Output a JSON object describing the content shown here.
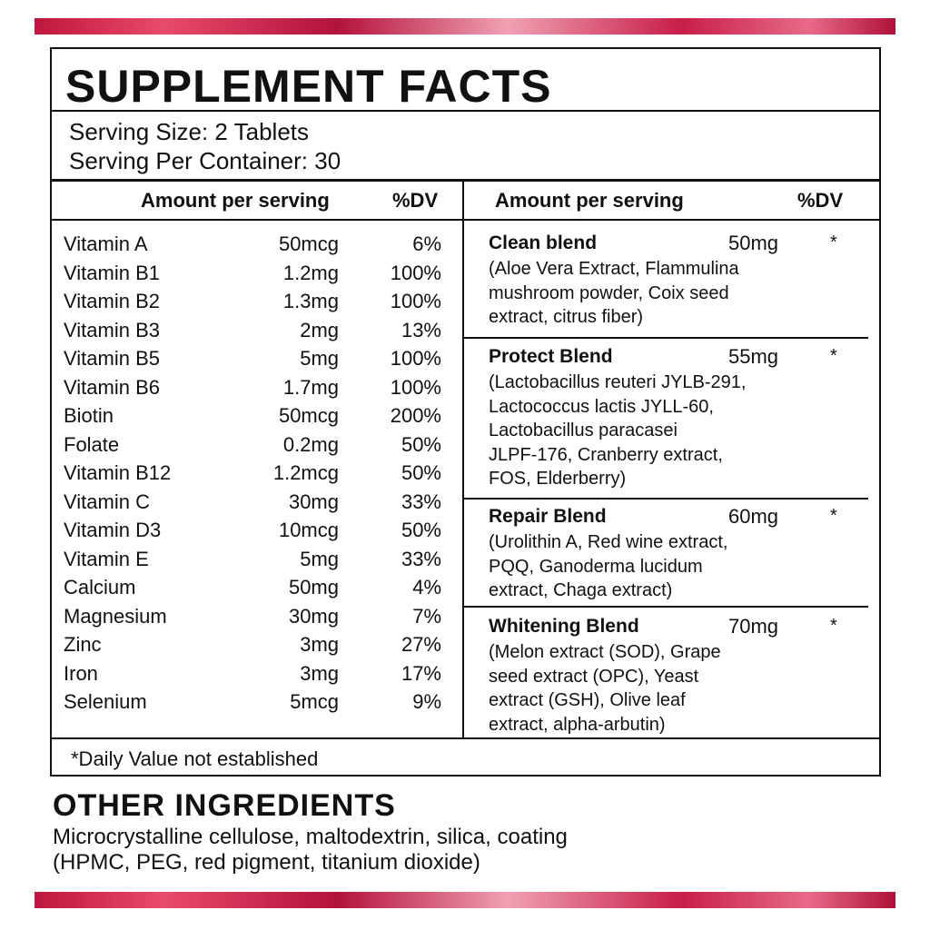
{
  "title": "SUPPLEMENT FACTS",
  "serving_size": "Serving Size: 2 Tablets",
  "servings_per_container": "Serving Per Container: 30",
  "left_header": {
    "amount": "Amount  per serving",
    "dv": "%DV"
  },
  "right_header": {
    "amount": "Amount  per serving",
    "dv": "%DV"
  },
  "vitamins": [
    [
      "Vitamin A",
      "50mcg",
      "6%"
    ],
    [
      "Vitamin B1",
      "1.2mg",
      "100%"
    ],
    [
      "Vitamin B2",
      "1.3mg",
      "100%"
    ],
    [
      "Vitamin B3",
      "2mg",
      "13%"
    ],
    [
      "Vitamin B5",
      "5mg",
      "100%"
    ],
    [
      "Vitamin B6",
      "1.7mg",
      "100%"
    ],
    [
      "Biotin",
      "50mcg",
      "200%"
    ],
    [
      "Folate",
      "0.2mg",
      "50%"
    ],
    [
      "Vitamin B12",
      "1.2mcg",
      "50%"
    ],
    [
      "Vitamin C",
      "30mg",
      "33%"
    ],
    [
      "Vitamin D3",
      "10mcg",
      "50%"
    ],
    [
      "Vitamin E",
      "5mg",
      "33%"
    ],
    [
      "Calcium",
      "50mg",
      "4%"
    ],
    [
      "Magnesium",
      "30mg",
      "7%"
    ],
    [
      "Zinc",
      "3mg",
      "27%"
    ],
    [
      "Iron",
      "3mg",
      "17%"
    ],
    [
      "Selenium",
      "5mcg",
      "9%"
    ]
  ],
  "blends": [
    {
      "name": "Clean blend",
      "amount": "50mg",
      "dv": "*",
      "lines": [
        "(Aloe Vera Extract, Flammulina",
        "mushroom powder, Coix seed",
        "extract, citrus fiber)"
      ]
    },
    {
      "name": "Protect Blend",
      "amount": "55mg",
      "dv": "*",
      "lines": [
        "(Lactobacillus reuteri JYLB-291,",
        "Lactococcus lactis JYLL-60,",
        "Lactobacillus paracasei",
        "JLPF-176, Cranberry extract,",
        "FOS, Elderberry)"
      ]
    },
    {
      "name": "Repair Blend",
      "amount": "60mg",
      "dv": "*",
      "lines": [
        "(Urolithin A, Red wine extract,",
        "PQQ, Ganoderma lucidum",
        "extract, Chaga extract)"
      ]
    },
    {
      "name": "Whitening Blend",
      "amount": "70mg",
      "dv": "*",
      "lines": [
        "(Melon extract (SOD), Grape",
        "seed extract (OPC), Yeast",
        "extract (GSH), Olive leaf",
        "extract, alpha-arbutin)"
      ]
    }
  ],
  "footnote": "*Daily Value not established",
  "other_ingredients": {
    "title": "OTHER INGREDIENTS",
    "lines": [
      "Microcrystalline cellulose, maltodextrin, silica, coating",
      "(HPMC, PEG, red pigment, titanium dioxide)"
    ]
  }
}
